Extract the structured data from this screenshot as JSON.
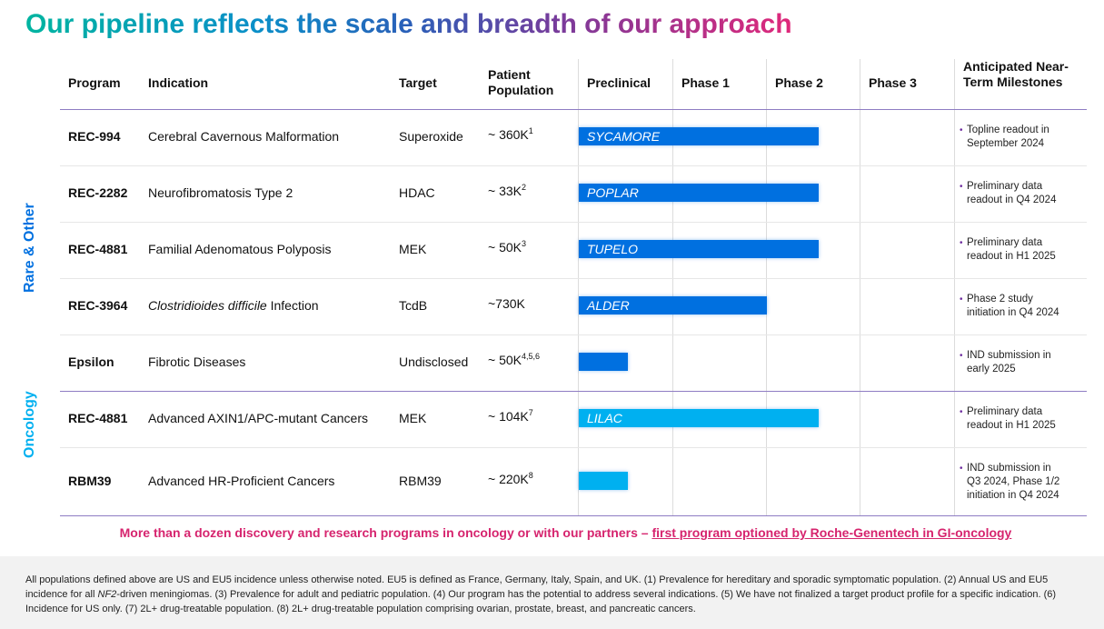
{
  "title": "Our pipeline reflects the scale and breadth of our approach",
  "headers": {
    "program": "Program",
    "indication": "Indication",
    "target": "Target",
    "population": "Patient Population",
    "preclinical": "Preclinical",
    "phase1": "Phase 1",
    "phase2": "Phase 2",
    "phase3": "Phase 3",
    "milestones": "Anticipated Near-Term Milestones"
  },
  "groups": {
    "rare": "Rare & Other",
    "oncology": "Oncology"
  },
  "colors": {
    "rare_bar": "#0070e0",
    "oncology_bar": "#00b0f0",
    "rare_label": "#0070e0",
    "oncology_label": "#00b0f0",
    "callout": "#d6246e",
    "divider": "#8e7cc3"
  },
  "rows": [
    {
      "program": "REC-994",
      "indication": "Cerebral Cavernous Malformation",
      "indication_italic": "",
      "target": "Superoxide",
      "population": "~ 360K",
      "sup": "1",
      "bar_label": "SYCAMORE",
      "bar_end_phase": 2.55,
      "milestone": [
        "Topline readout in",
        "September 2024"
      ]
    },
    {
      "program": "REC-2282",
      "indication": "Neurofibromatosis Type 2",
      "indication_italic": "",
      "target": "HDAC",
      "population": "~ 33K",
      "sup": "2",
      "bar_label": "POPLAR",
      "bar_end_phase": 2.55,
      "milestone": [
        "Preliminary data",
        "readout in Q4 2024"
      ]
    },
    {
      "program": "REC-4881",
      "indication": "Familial Adenomatous Polyposis",
      "indication_italic": "",
      "target": "MEK",
      "population": "~ 50K",
      "sup": "3",
      "bar_label": "TUPELO",
      "bar_end_phase": 2.55,
      "milestone": [
        "Preliminary data",
        "readout in H1 2025"
      ]
    },
    {
      "program": "REC-3964",
      "indication": " Infection",
      "indication_italic": "Clostridioides difficile",
      "target": "TcdB",
      "population": "~730K",
      "sup": "",
      "bar_label": "ALDER",
      "bar_end_phase": 2.0,
      "milestone": [
        "Phase 2 study",
        "initiation in Q4 2024"
      ]
    },
    {
      "program": "Epsilon",
      "indication": "Fibrotic Diseases",
      "indication_italic": "",
      "target": "Undisclosed",
      "population": "~ 50K",
      "sup": "4,5,6",
      "bar_label": "",
      "bar_end_phase": 0.52,
      "milestone": [
        "IND submission in",
        "early 2025"
      ]
    },
    {
      "program": "REC-4881",
      "indication": "Advanced AXIN1/APC-mutant Cancers",
      "indication_italic": "",
      "target": "MEK",
      "population": "~ 104K",
      "sup": "7",
      "bar_label": "LILAC",
      "bar_end_phase": 2.55,
      "milestone": [
        "Preliminary data",
        "readout in H1 2025"
      ]
    },
    {
      "program": "RBM39",
      "indication": "Advanced HR-Proficient Cancers",
      "indication_italic": "",
      "target": "RBM39",
      "population": "~ 220K",
      "sup": "8",
      "bar_label": "",
      "bar_end_phase": 0.52,
      "milestone": [
        "IND submission in",
        "Q3 2024, Phase 1/2",
        "initiation in Q4 2024"
      ]
    }
  ],
  "callout": {
    "text": "More than a dozen discovery and research programs in oncology or with our partners – ",
    "link": "first program optioned by Roche-Genentech in GI-oncology"
  },
  "footnote": {
    "a": "All populations defined above are US and EU5 incidence unless otherwise noted. EU5 is defined as France, Germany, Italy, Spain, and UK. (1) Prevalence for hereditary and sporadic symptomatic population. (2) Annual US and EU5 incidence for all ",
    "italic": "NF2",
    "b": "-driven meningiomas. (3) Prevalence for adult and pediatric population. (4) Our program has the potential to address several indications. (5) We have not finalized a target product profile for a specific indication. (6) Incidence for US only. (7) 2L+ drug-treatable population. (8) 2L+ drug-treatable population comprising ovarian, prostate, breast, and pancreatic cancers."
  }
}
